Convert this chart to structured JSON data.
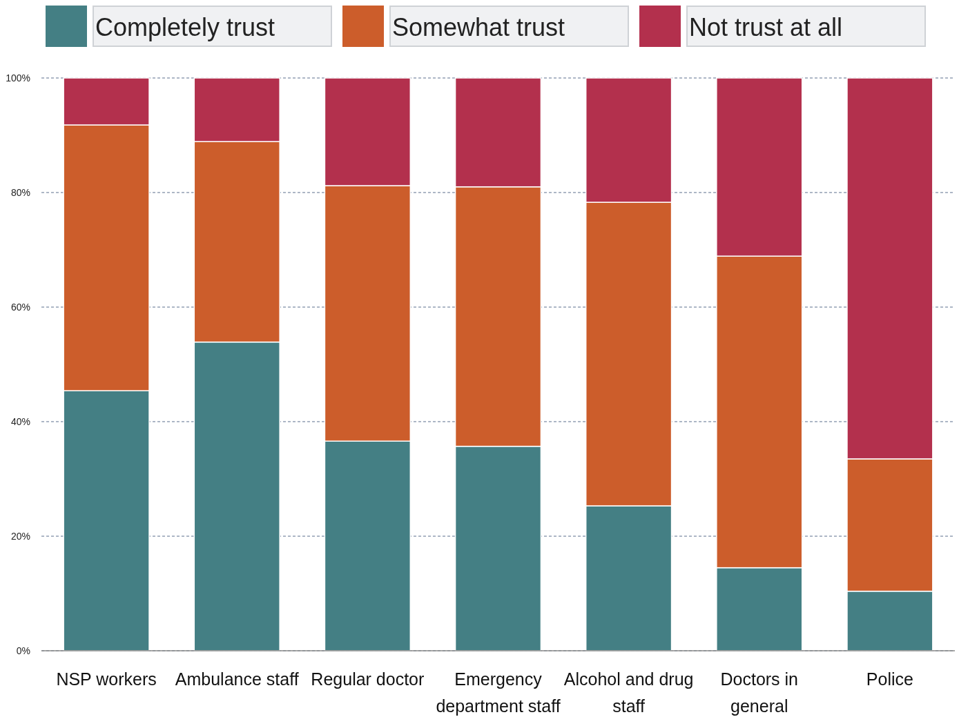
{
  "chart_data": {
    "type": "bar",
    "stacked": true,
    "categories": [
      "NSP workers",
      "Ambulance staff",
      "Regular doctor",
      "Emergency department staff",
      "Alcohol and drug staff",
      "Doctors in general",
      "Police"
    ],
    "series": [
      {
        "name": "Completely trust",
        "color": "#447f84",
        "values": [
          45.4,
          53.9,
          36.6,
          35.7,
          25.3,
          14.5,
          10.4
        ]
      },
      {
        "name": "Somewhat trust",
        "color": "#cc5d2b",
        "values": [
          46.4,
          35.0,
          44.6,
          45.3,
          53.0,
          54.4,
          23.1
        ]
      },
      {
        "name": "Not trust at all",
        "color": "#b3304d",
        "values": [
          8.2,
          11.1,
          18.8,
          19.0,
          21.7,
          31.1,
          66.5
        ]
      }
    ],
    "ylim": [
      0,
      100
    ],
    "yticks": [
      {
        "value": 0,
        "label": "0%"
      },
      {
        "value": 20,
        "label": "20%"
      },
      {
        "value": 40,
        "label": "40%"
      },
      {
        "value": 60,
        "label": "60%"
      },
      {
        "value": 80,
        "label": "80%"
      },
      {
        "value": 100,
        "label": "100%"
      }
    ],
    "grid": "y",
    "legend": "top"
  }
}
